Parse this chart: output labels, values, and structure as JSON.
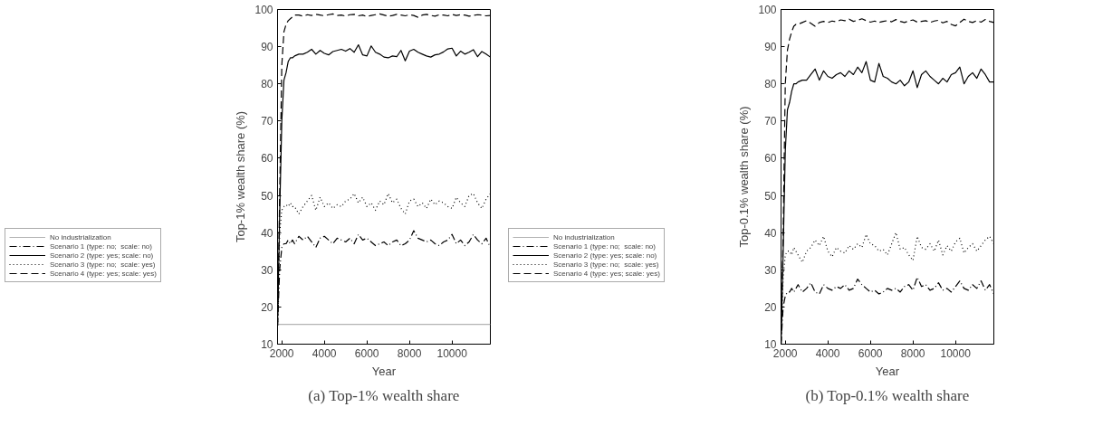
{
  "chart_data": [
    {
      "type": "line",
      "title": "(a) Top-1% wealth share",
      "xlabel": "Year",
      "ylabel": "Top-1% wealth share (%)",
      "xlim": [
        1800,
        11800
      ],
      "ylim": [
        10,
        100
      ],
      "xticks": [
        2000,
        4000,
        6000,
        8000,
        10000
      ],
      "yticks": [
        10,
        20,
        30,
        40,
        50,
        60,
        70,
        80,
        90,
        100
      ],
      "grid": false,
      "legend": "left",
      "x": [
        1800,
        1900,
        2000,
        2100,
        2200,
        2300,
        2400,
        2500,
        2600,
        2800,
        3000,
        3200,
        3400,
        3600,
        3800,
        4000,
        4200,
        4400,
        4600,
        4800,
        5000,
        5200,
        5400,
        5600,
        5800,
        6000,
        6200,
        6400,
        6600,
        6800,
        7000,
        7200,
        7400,
        7600,
        7800,
        8000,
        8200,
        8400,
        8600,
        8800,
        9000,
        9200,
        9400,
        9600,
        9800,
        10000,
        10200,
        10400,
        10600,
        10800,
        11000,
        11200,
        11400,
        11600,
        11800
      ],
      "series": [
        {
          "name": "No industrialization",
          "color": "#b3b3b3",
          "line_style": "solid",
          "x": [
            1800,
            11800
          ],
          "values": [
            15.3,
            15.3
          ]
        },
        {
          "name": "Scenario 1 (type: no;  scale: no)",
          "color": "#000000",
          "line_style": "dashdot",
          "values": [
            15,
            30,
            36,
            37,
            37,
            38,
            37,
            38,
            37,
            39,
            38,
            39,
            37.5,
            36,
            38.5,
            39,
            38,
            37,
            38.5,
            38,
            37.5,
            38.5,
            37,
            39.5,
            38,
            38.5,
            37.5,
            36.5,
            37,
            37.5,
            36.5,
            37.5,
            38,
            36.5,
            37,
            38,
            40.5,
            38.5,
            38,
            37.5,
            38,
            37,
            36.5,
            37.5,
            38,
            39.5,
            37,
            38,
            36.5,
            37.5,
            39.5,
            38,
            37,
            38.5,
            36
          ]
        },
        {
          "name": "Scenario 2 (type: yes; scale: no)",
          "color": "#000000",
          "line_style": "solid",
          "values": [
            15,
            45,
            70,
            81,
            83,
            86,
            87,
            87,
            87.5,
            88,
            88,
            88.5,
            89.3,
            88,
            89,
            88.2,
            87.8,
            88.7,
            89,
            89.3,
            88.8,
            89.5,
            88.5,
            90.5,
            87.8,
            87.5,
            90.2,
            88.5,
            88,
            87.2,
            87,
            87.5,
            87.3,
            89,
            86.2,
            88.8,
            89.3,
            88.5,
            88,
            87.5,
            87.2,
            87.8,
            88,
            88.6,
            89.4,
            89.6,
            87.5,
            88.8,
            88,
            88.5,
            89.2,
            87.3,
            88.7,
            88,
            87.2
          ]
        },
        {
          "name": "Scenario 3 (type: no;  scale: yes)",
          "color": "#000000",
          "line_style": "dotted",
          "values": [
            15,
            40,
            46,
            47,
            47.5,
            47,
            48,
            47,
            47,
            45,
            47,
            48.5,
            50,
            46,
            49.5,
            47,
            48,
            46.5,
            47.5,
            47,
            48.5,
            49,
            50.5,
            48,
            49.5,
            47,
            48,
            46,
            48.5,
            47.5,
            50.5,
            48,
            49,
            46.5,
            45,
            48.5,
            49,
            47,
            48,
            46.5,
            49,
            47.5,
            48.5,
            48,
            47,
            46.5,
            49.5,
            48,
            47,
            50,
            50.5,
            48,
            46.5,
            49,
            50.5
          ]
        },
        {
          "name": "Scenario 4 (type: yes; scale: yes)",
          "color": "#000000",
          "line_style": "dashed",
          "values": [
            15,
            50,
            85,
            94,
            96,
            97,
            97.5,
            98,
            98.5,
            98.5,
            98.2,
            98.6,
            98.4,
            98.7,
            98.5,
            98.3,
            98.6,
            98.8,
            98.4,
            98.5,
            98.2,
            98.6,
            98.7,
            98.3,
            98.5,
            98.1,
            98.4,
            98.6,
            98.8,
            98.5,
            98.2,
            98.4,
            98.7,
            98.5,
            98.3,
            98.6,
            98.4,
            97.9,
            98.5,
            98.7,
            98.4,
            98.2,
            98.6,
            98.5,
            98.3,
            98.7,
            98.4,
            98.6,
            98.5,
            98.2,
            98.4,
            98.6,
            98.5,
            98.3,
            98.4
          ]
        }
      ]
    },
    {
      "type": "line",
      "title": "(b) Top-0.1% wealth share",
      "xlabel": "Year",
      "ylabel": "Top-0.1% wealth share (%)",
      "xlim": [
        1800,
        11800
      ],
      "ylim": [
        10,
        100
      ],
      "xticks": [
        2000,
        4000,
        6000,
        8000,
        10000
      ],
      "yticks": [
        10,
        20,
        30,
        40,
        50,
        60,
        70,
        80,
        90,
        100
      ],
      "grid": false,
      "legend": "left",
      "x": [
        1800,
        1900,
        2000,
        2100,
        2200,
        2300,
        2400,
        2500,
        2600,
        2800,
        3000,
        3200,
        3400,
        3600,
        3800,
        4000,
        4200,
        4400,
        4600,
        4800,
        5000,
        5200,
        5400,
        5600,
        5800,
        6000,
        6200,
        6400,
        6600,
        6800,
        7000,
        7200,
        7400,
        7600,
        7800,
        8000,
        8200,
        8400,
        8600,
        8800,
        9000,
        9200,
        9400,
        9600,
        9800,
        10000,
        10200,
        10400,
        10600,
        10800,
        11000,
        11200,
        11400,
        11600,
        11800
      ],
      "series": [
        {
          "name": "No industrialization",
          "color": "#b3b3b3",
          "line_style": "solid",
          "values": [
            null,
            null,
            null,
            null,
            null,
            null,
            null,
            null,
            null,
            null,
            null,
            null,
            null,
            null,
            null,
            null,
            null,
            null,
            null,
            null,
            null,
            null,
            null,
            null,
            null,
            null,
            null,
            null,
            null,
            null,
            null,
            null,
            null,
            null,
            null,
            null,
            null,
            null,
            null,
            null,
            null,
            null,
            null,
            null,
            null,
            null,
            null,
            null,
            null,
            null,
            null,
            null,
            null,
            null,
            null
          ]
        },
        {
          "name": "Scenario 1 (type: no;  scale: no)",
          "color": "#000000",
          "line_style": "dashdot",
          "values": [
            10,
            20,
            23,
            24,
            24,
            25,
            24,
            25,
            26,
            24,
            25,
            26.5,
            24,
            23.5,
            26,
            25,
            24.5,
            25.5,
            25,
            26,
            24.5,
            25,
            27.5,
            26,
            25,
            24,
            24.5,
            23.5,
            24,
            25,
            24.5,
            25,
            24,
            25.5,
            26,
            24.5,
            28,
            25.5,
            26,
            24.5,
            25,
            26.5,
            24.5,
            25,
            24,
            25.5,
            27,
            25,
            24.5,
            26,
            25,
            27,
            24.5,
            26,
            23.5
          ]
        },
        {
          "name": "Scenario 2 (type: yes; scale: no)",
          "color": "#000000",
          "line_style": "solid",
          "values": [
            10,
            35,
            62,
            73,
            75,
            78,
            80,
            80,
            80.5,
            81,
            81,
            82.5,
            84,
            81,
            83.5,
            82,
            81.5,
            82.5,
            83,
            82,
            83.5,
            82.5,
            84.5,
            83,
            86,
            81,
            80.5,
            85.5,
            82,
            81.5,
            80.5,
            80,
            81,
            79.5,
            80.5,
            83.5,
            79,
            82.5,
            83.5,
            82,
            81,
            80,
            81.5,
            80.5,
            82.5,
            83,
            84.5,
            80,
            82,
            83,
            81.5,
            84,
            82.5,
            80.5,
            80.5
          ]
        },
        {
          "name": "Scenario 3 (type: no;  scale: yes)",
          "color": "#000000",
          "line_style": "dotted",
          "values": [
            10,
            28,
            34,
            35,
            35,
            34,
            36,
            35,
            34,
            32,
            35,
            36,
            38,
            36.5,
            39,
            35,
            33.5,
            36,
            35,
            34.5,
            36.5,
            35.5,
            37,
            36,
            39.5,
            37,
            36.5,
            35,
            35.5,
            34,
            37,
            40,
            35.5,
            36,
            34,
            32.5,
            39,
            36,
            35.5,
            37,
            35,
            38,
            34,
            36.5,
            35,
            37.5,
            38.5,
            34.5,
            36,
            37,
            35,
            36.5,
            38,
            39,
            37
          ]
        },
        {
          "name": "Scenario 4 (type: yes; scale: yes)",
          "color": "#000000",
          "line_style": "dashed",
          "values": [
            10,
            40,
            80,
            89,
            92,
            94,
            95.5,
            96,
            96,
            96.5,
            97,
            96.3,
            95.5,
            96.5,
            96.8,
            96.5,
            96.9,
            96.7,
            97.2,
            97,
            97.4,
            96.8,
            97.1,
            97.5,
            97,
            96.6,
            96.9,
            96.5,
            96.8,
            97,
            96.7,
            97.3,
            96.8,
            96.5,
            96.9,
            97.2,
            96.6,
            96.8,
            97,
            96.5,
            96.9,
            97.1,
            96.4,
            96.8,
            96,
            95.6,
            96.5,
            97.4,
            96.8,
            96.5,
            97,
            96.6,
            97.3,
            96.8,
            96.5
          ]
        }
      ]
    }
  ]
}
